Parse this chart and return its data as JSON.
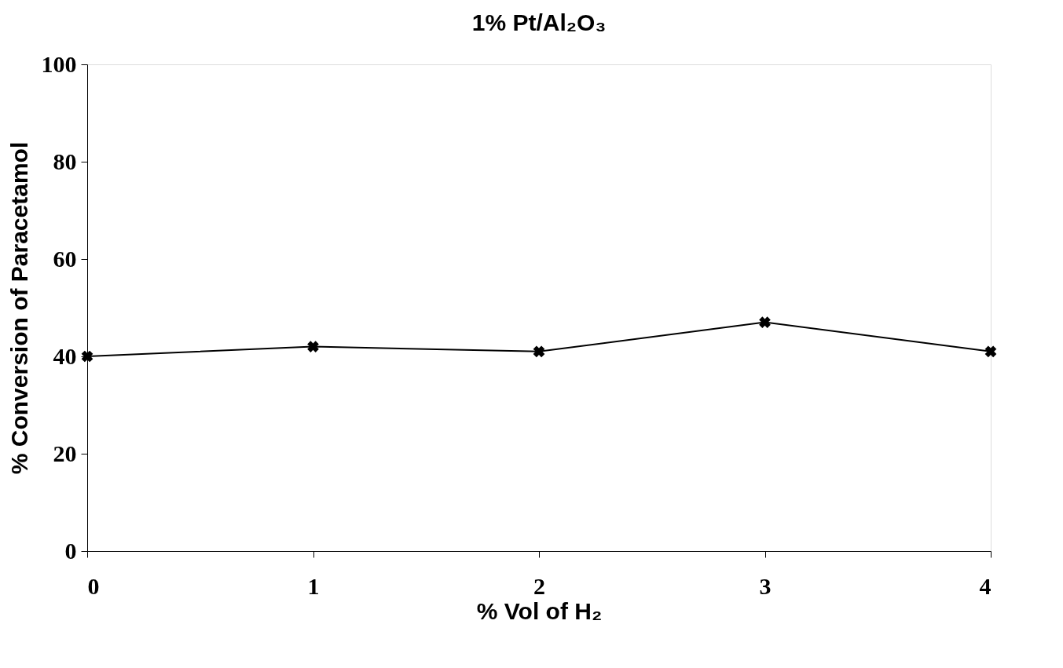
{
  "chart_data": {
    "type": "line",
    "title": "1% Pt/Al₂O₃",
    "xlabel": "% Vol of H₂",
    "ylabel": "% Conversion of Paracetamol",
    "x": [
      0,
      1,
      2,
      3,
      4
    ],
    "series": [
      {
        "color": "#000000",
        "values": [
          40,
          42,
          41,
          47,
          41
        ]
      }
    ],
    "xlim": [
      0,
      4
    ],
    "xticks": [
      0,
      1,
      2,
      3,
      4
    ],
    "ylim": [
      0,
      100
    ],
    "yticks": [
      0,
      20,
      40,
      60,
      80,
      100
    ],
    "grid": false,
    "marker": "cross",
    "line_style": "solid"
  }
}
